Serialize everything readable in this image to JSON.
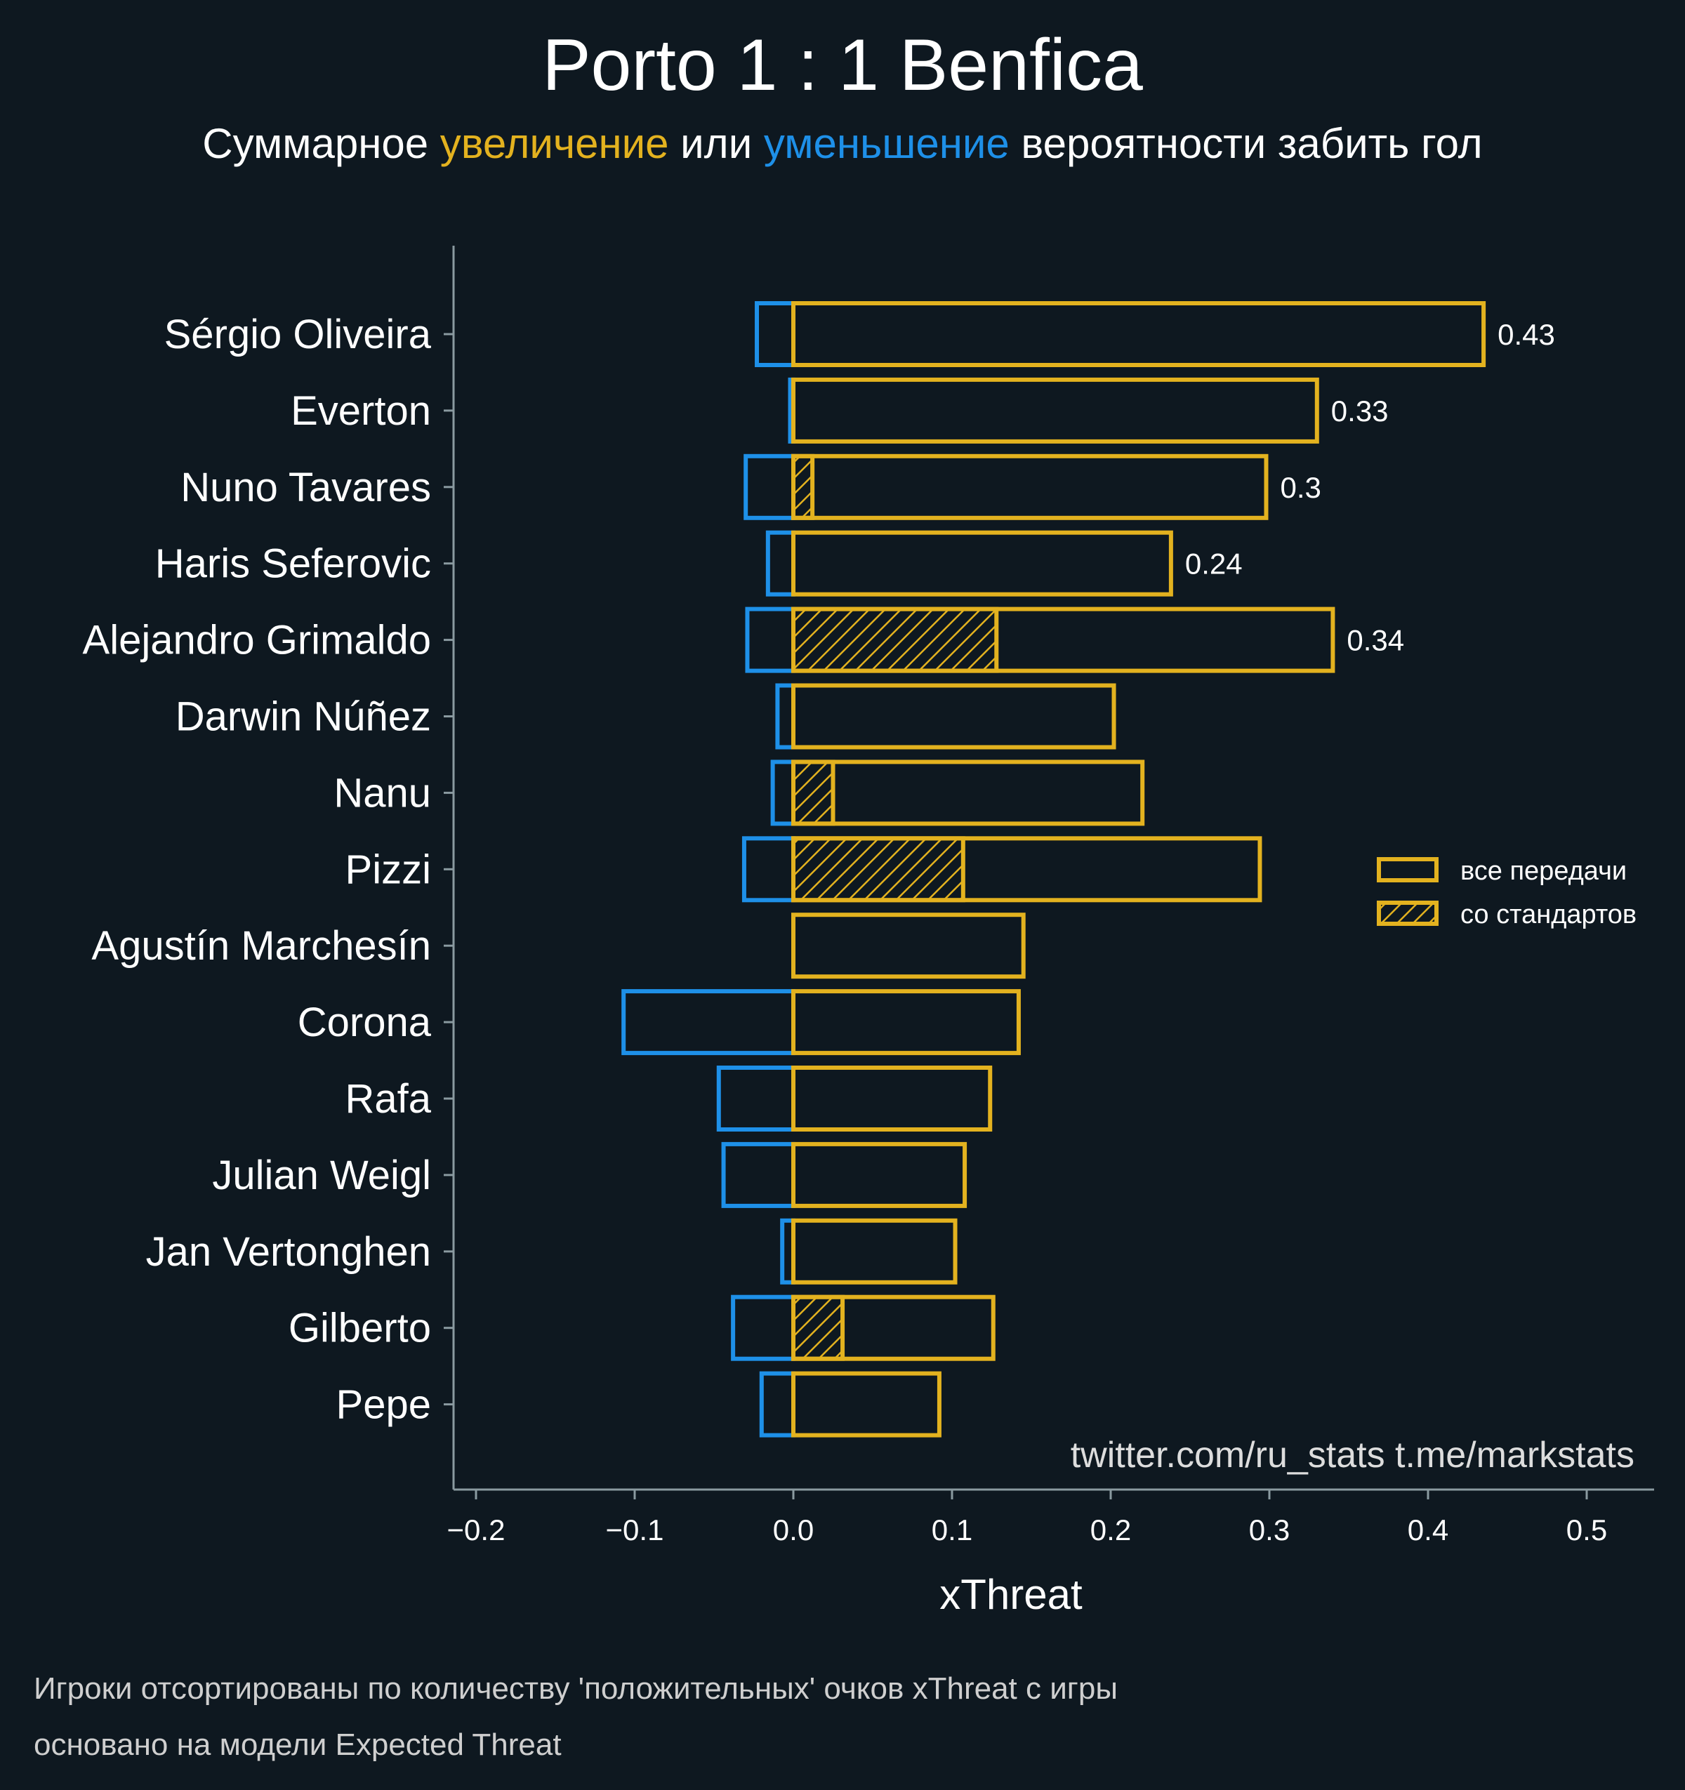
{
  "colors": {
    "background": "#0e1820",
    "increase": "#e3b21f",
    "decrease": "#1e90e8",
    "axis": "#8a9aa0",
    "text": "#ffffff"
  },
  "title": "Porto 1 : 1 Benfica",
  "subtitle": {
    "prefix": "Суммарное ",
    "increase_word": "увеличение",
    "middle": " или ",
    "decrease_word": "уменьшение",
    "suffix": " вероятности забить гол"
  },
  "credit": "twitter.com/ru_stats  t.me/markstats",
  "notes": [
    "Игроки отсортированы по количеству 'положительных' очков xThreat с игры",
    "основано на модели Expected Threat"
  ],
  "chart_data": {
    "type": "bar",
    "orientation": "horizontal",
    "xlabel": "xThreat",
    "xlim": [
      -0.2,
      0.55
    ],
    "xticks": [
      -0.2,
      -0.1,
      0.0,
      0.1,
      0.2,
      0.3,
      0.4,
      0.5
    ],
    "xtick_labels": [
      "−0.2",
      "−0.1",
      "0.0",
      "0.1",
      "0.2",
      "0.3",
      "0.4",
      "0.5"
    ],
    "categories": [
      "Sérgio Oliveira",
      "Everton",
      "Nuno Tavares",
      "Haris Seferovic",
      "Alejandro Grimaldo",
      "Darwin Núñez",
      "Nanu",
      "Pizzi",
      "Agustín Marchesín",
      "Corona",
      "Rafa",
      "Julian Weigl",
      "Jan Vertonghen",
      "Gilberto",
      "Pepe"
    ],
    "series": [
      {
        "name": "positive (все передачи)",
        "values": [
          0.435,
          0.33,
          0.298,
          0.238,
          0.34,
          0.202,
          0.22,
          0.294,
          0.145,
          0.142,
          0.124,
          0.108,
          0.102,
          0.126,
          0.092
        ]
      },
      {
        "name": "negative",
        "values": [
          -0.023,
          -0.002,
          -0.03,
          -0.016,
          -0.029,
          -0.01,
          -0.013,
          -0.031,
          0.0,
          -0.107,
          -0.047,
          -0.044,
          -0.007,
          -0.038,
          -0.02
        ]
      },
      {
        "name": "со стандартов",
        "values": [
          0,
          0,
          0.012,
          0,
          0.128,
          0,
          0.025,
          0.107,
          0,
          0,
          0,
          0,
          0,
          0.031,
          0
        ]
      }
    ],
    "value_labels": [
      "0.43",
      "0.33",
      "0.3",
      "0.24",
      "0.34",
      "",
      "",
      "",
      "",
      "",
      "",
      "",
      "",
      "",
      ""
    ],
    "legend": {
      "position": "right",
      "entries": [
        "все передачи",
        "со стандартов"
      ]
    }
  }
}
